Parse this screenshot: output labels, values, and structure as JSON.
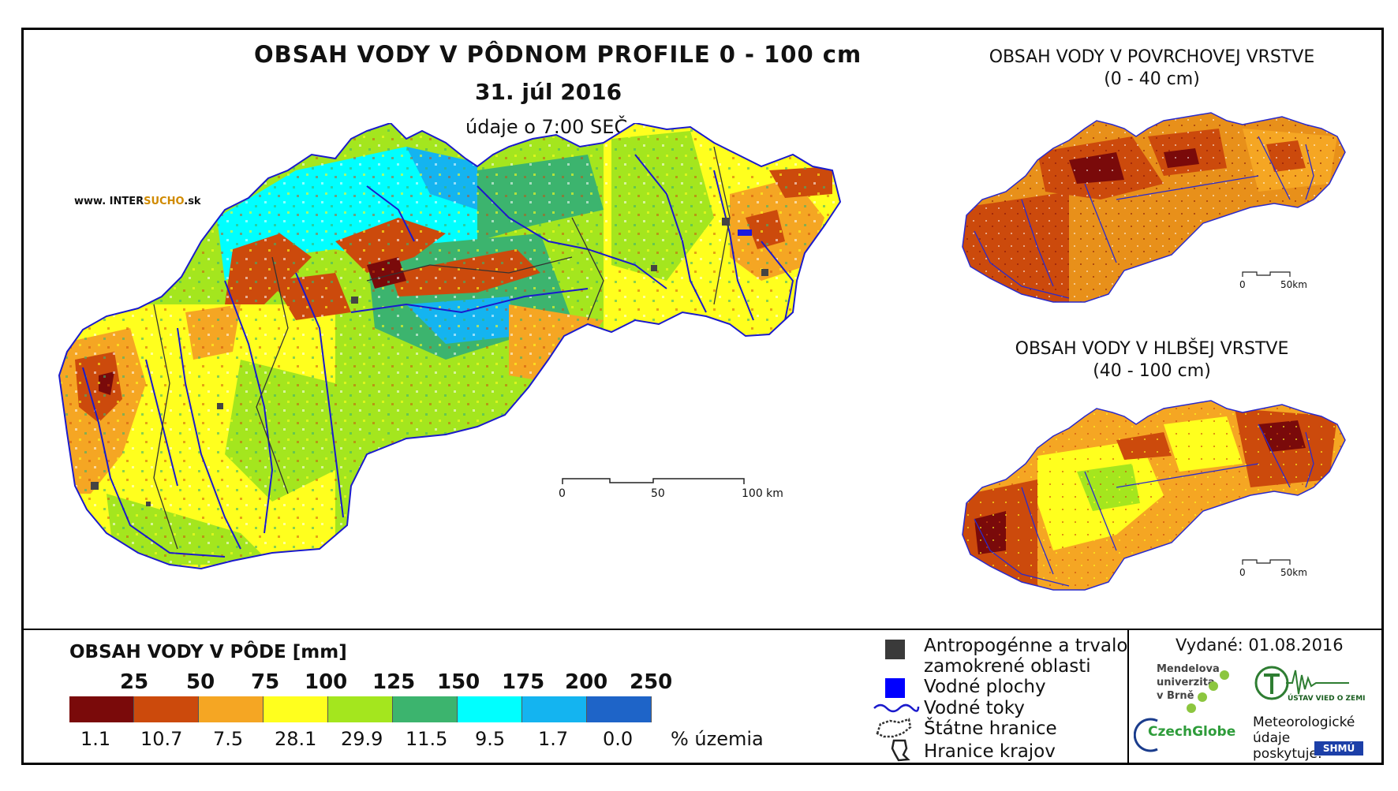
{
  "header": {
    "title": "OBSAH VODY V PÔDNOM PROFILE 0 - 100 cm",
    "date": "31. júl 2016",
    "subtitle": "údaje o 7:00 SEČ",
    "site_prefix": "www. INTER",
    "site_highlight": "SUCHO",
    "site_suffix": ".sk"
  },
  "side_maps": {
    "top_title_1": "OBSAH VODY V POVRCHOVEJ VRSTVE",
    "top_title_2": "(0 - 40 cm)",
    "bottom_title_1": "OBSAH VODY V HLBŠEJ VRSTVE",
    "bottom_title_2": "(40 - 100 cm)",
    "scale_start": "0",
    "scale_end": "50km"
  },
  "main_scale": {
    "start": "0",
    "mid": "50",
    "end": "100 km"
  },
  "legend": {
    "title": "OBSAH VODY V PÔDE [mm]",
    "bounds": [
      "25",
      "50",
      "75",
      "100",
      "125",
      "150",
      "175",
      "200",
      "250"
    ],
    "percentages": [
      "1.1",
      "10.7",
      "7.5",
      "28.1",
      "29.9",
      "11.5",
      "9.5",
      "1.7",
      "0.0"
    ],
    "pct_unit": "% územia",
    "colors": [
      "#7a0a0a",
      "#cc4a0c",
      "#f5a623",
      "#ffff1e",
      "#a4e61e",
      "#3cb46e",
      "#00ffff",
      "#14b4f0",
      "#1e64c8"
    ]
  },
  "key": {
    "anthro_1": "Antropogénne a trvalo",
    "anthro_2": "zamokrené oblasti",
    "water_bodies": "Vodné plochy",
    "rivers": "Vodné toky",
    "state_border": "Štátne hranice",
    "region_border": "Hranice krajov"
  },
  "credits": {
    "issued": "Vydané: 01.08.2016",
    "mendel_1": "Mendelova",
    "mendel_2": "univerzita",
    "mendel_3": "v Brně",
    "czechglobe": "CzechGlobe",
    "ustav": "ÚSTAV VIED O ZEMI",
    "meteo_1": "Meteorologické",
    "meteo_2": "údaje",
    "meteo_3": "poskytuje:",
    "shmu": "SHMÚ"
  }
}
